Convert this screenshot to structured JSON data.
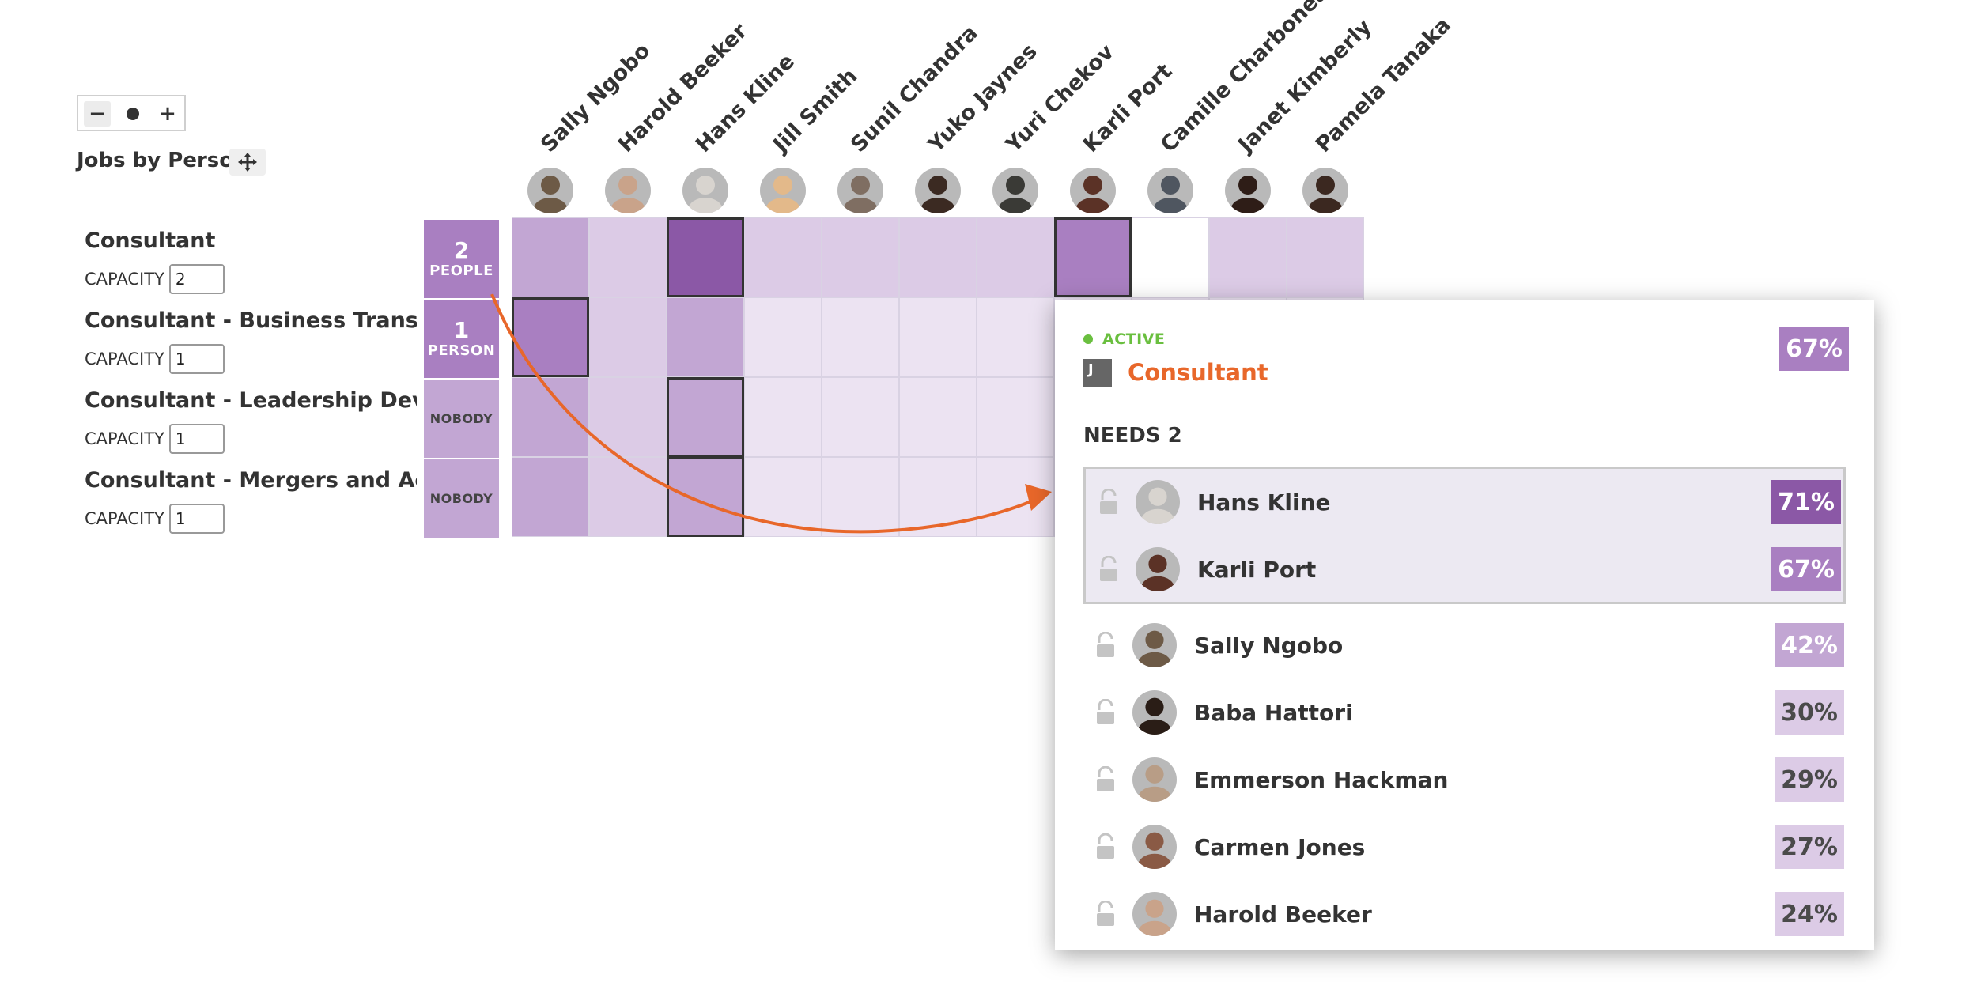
{
  "view": {
    "title": "Jobs by Person",
    "zoom_out_label": "−",
    "zoom_in_label": "+",
    "move_icon": "move-icon"
  },
  "people": [
    {
      "name": "Sally Ngobo",
      "avatar_color": "#6d5a46"
    },
    {
      "name": "Harold Beeker",
      "avatar_color": "#c9a38a"
    },
    {
      "name": "Hans Kline",
      "avatar_color": "#d8d4cf"
    },
    {
      "name": "Jill Smith",
      "avatar_color": "#e3b98a"
    },
    {
      "name": "Sunil Chandra",
      "avatar_color": "#7f6e62"
    },
    {
      "name": "Yuko Jaynes",
      "avatar_color": "#3b2a22"
    },
    {
      "name": "Yuri Chekov",
      "avatar_color": "#3a3a36"
    },
    {
      "name": "Karli Port",
      "avatar_color": "#5b3226"
    },
    {
      "name": "Camille Charboneau",
      "avatar_color": "#4f5660"
    },
    {
      "name": "Janet Kimberly",
      "avatar_color": "#2e1d17"
    },
    {
      "name": "Pamela Tanaka",
      "avatar_color": "#3b2820"
    }
  ],
  "jobs": [
    {
      "name": "Consultant",
      "capacity_label": "CAPACITY",
      "capacity": "2",
      "staffed_count": "2",
      "staffed_label": "PEOPLE"
    },
    {
      "name": "Consultant - Business Transfor...",
      "capacity_label": "CAPACITY",
      "capacity": "1",
      "staffed_count": "1",
      "staffed_label": "PERSON"
    },
    {
      "name": "Consultant - Leadership Devel...",
      "capacity_label": "CAPACITY",
      "capacity": "1",
      "staffed_count": "",
      "staffed_label": "NOBODY"
    },
    {
      "name": "Consultant - Mergers and Acqu...",
      "capacity_label": "CAPACITY",
      "capacity": "1",
      "staffed_count": "",
      "staffed_label": "NOBODY"
    }
  ],
  "colors": {
    "staffed_filled": "#a97fc1",
    "staffed_empty": "#c2a6d3",
    "match_high": "#8b58a6",
    "match_mid": "#a97fc1",
    "match_low": "#c2a6d3",
    "match_lower": "#dccbe6",
    "match_lowest": "#ece3f2",
    "arrow": "#e8672a",
    "active": "#6abf3f",
    "job_title": "#e8672a"
  },
  "grid": [
    [
      "#c2a6d3",
      "#dccbe6",
      "#8b58a6",
      "#dccbe6",
      "#dccbe6",
      "#dccbe6",
      "#dccbe6",
      "#a97fc1",
      "#ffffff",
      "#dccbe6",
      "#dccbe6"
    ],
    [
      "#a97fc1",
      "#dccbe6",
      "#c2a6d3",
      "#ece3f2",
      "#ece3f2",
      "#ece3f2",
      "#ece3f2",
      "#ece3f2",
      "#ece3f2",
      "#ece3f2",
      "#ece3f2"
    ],
    [
      "#c2a6d3",
      "#dccbe6",
      "#c2a6d3",
      "#ece3f2",
      "#ece3f2",
      "#ece3f2",
      "#ece3f2",
      "#ece3f2",
      "#ece3f2",
      "#ece3f2",
      "#ece3f2"
    ],
    [
      "#c2a6d3",
      "#dccbe6",
      "#c2a6d3",
      "#ece3f2",
      "#ece3f2",
      "#ece3f2",
      "#ece3f2",
      "#ece3f2",
      "#ece3f2",
      "#ece3f2",
      "#ece3f2"
    ]
  ],
  "selected_cells": [
    [
      0,
      2
    ],
    [
      0,
      7
    ],
    [
      1,
      0
    ],
    [
      2,
      2
    ],
    [
      3,
      2
    ]
  ],
  "popover": {
    "status": "ACTIVE",
    "job_icon_letter": "J",
    "job_title": "Consultant",
    "score": "67%",
    "needs_label": "NEEDS 2",
    "assigned": [
      {
        "name": "Hans Kline",
        "score": "71%",
        "color": "#8b58a6",
        "avatar_color": "#d8d4cf"
      },
      {
        "name": "Karli Port",
        "score": "67%",
        "color": "#a97fc1",
        "avatar_color": "#5b3226"
      }
    ],
    "candidates": [
      {
        "name": "Sally Ngobo",
        "score": "42%",
        "color": "#c2a6d3",
        "avatar_color": "#6d5a46"
      },
      {
        "name": "Baba Hattori",
        "score": "30%",
        "color": "#dccbe6",
        "avatar_color": "#2a1d16"
      },
      {
        "name": "Emmerson Hackman",
        "score": "29%",
        "color": "#dccbe6",
        "avatar_color": "#b89d86"
      },
      {
        "name": "Carmen Jones",
        "score": "27%",
        "color": "#dccbe6",
        "avatar_color": "#8a5a45"
      },
      {
        "name": "Harold Beeker",
        "score": "24%",
        "color": "#dccbe6",
        "avatar_color": "#c9a38a"
      }
    ]
  }
}
